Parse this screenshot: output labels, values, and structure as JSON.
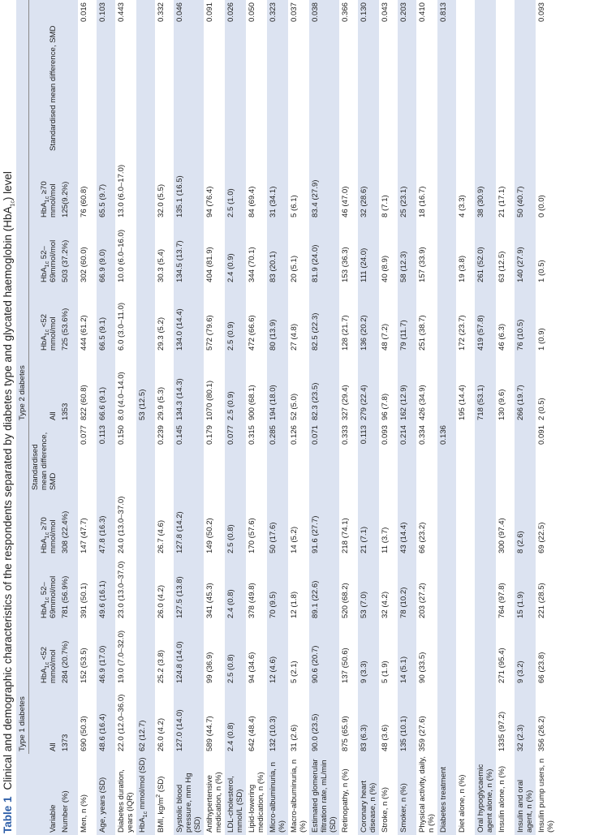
{
  "title": {
    "label": "Table 1",
    "text": [
      "Clinical and demographic characteristics of the respondents separated by diabetes type and glycated haemoglobin (HbA",
      {
        "sub": "1c"
      },
      ") level"
    ]
  },
  "table": {
    "groups": [
      "Type 1 diabetes",
      "Type 2 diabetes"
    ],
    "columns": [
      [
        "Variable"
      ],
      [
        "All"
      ],
      [
        "HbA",
        {
          "sub": "1c"
        },
        " <52 mmol/mol"
      ],
      [
        "HbA",
        {
          "sub": "1c"
        },
        " 52–69mmol/mol"
      ],
      [
        "HbA",
        {
          "sub": "1c"
        },
        " ≥70 mmol/mol"
      ],
      [
        "Standardised mean difference, SMD"
      ],
      [
        "All"
      ],
      [
        "HbA",
        {
          "sub": "1c"
        },
        " <52 mmol/mol"
      ],
      [
        "HbA",
        {
          "sub": "1c"
        },
        " 52–69mmol/mol"
      ],
      [
        "HbA",
        {
          "sub": "1c"
        },
        " ≥70 mmol/mol"
      ],
      [
        "Standardised mean difference, SMD"
      ]
    ],
    "rows": [
      {
        "label": [
          "Number (%)"
        ],
        "cells": [
          "1373",
          "284 (20.7%)",
          "781 (56.9%)",
          "308 (22.4%)",
          null,
          "1353",
          "725 (53.6%)",
          "503 (37.2%)",
          "125(9.2%)",
          null
        ]
      },
      {
        "label": [
          "Men, n (%)"
        ],
        "cells": [
          "690 (50.3)",
          "152 (53.5)",
          "391 (50.1)",
          "147 (47.7)",
          "0.077",
          "822 (60.8)",
          "444 (61.2)",
          "302 (60.0)",
          "76 (60.8)",
          "0.016"
        ]
      },
      {
        "label": [
          "Age, years (SD)"
        ],
        "cells": [
          "48.6 (16.4)",
          "46.9 (17.0)",
          "49.6 (16.1)",
          "47.8 (16.3)",
          "0.113",
          "66.6 (9.1)",
          "66.5 (9.1)",
          "66.9 (9.0)",
          "65.5 (9.7)",
          "0.103"
        ]
      },
      {
        "label": [
          "Diabetes duration, years (IQR)"
        ],
        "cells": [
          "22.0 (12.0–36.0)",
          "19.0 (7.0–32.0)",
          "23.0 (13.0–37.0)",
          "24.0 (13.0–37.0)",
          "0.150",
          "8.0 (4.0–14.0)",
          "6.0 (3.0–11.0)",
          "10.0 (6.0–16.0)",
          "13.0 (6.0–17.0)",
          "0.443"
        ]
      },
      {
        "label": [
          "HbA",
          {
            "sub": "1c"
          },
          " mmol/mol (SD)"
        ],
        "cells": [
          "62 (12.7)",
          null,
          null,
          null,
          null,
          "53 (12.5)",
          null,
          null,
          null,
          null
        ]
      },
      {
        "label": [
          "BMI, kg/m",
          {
            "sup": "2"
          },
          " (SD)"
        ],
        "cells": [
          "26.0 (4.2)",
          "25.2 (3.8)",
          "26.0 (4.2)",
          "26.7 (4.6)",
          "0.239",
          "29.9 (5.3)",
          "29.3 (5.2)",
          "30.3 (5.4)",
          "32.0 (5.5)",
          "0.332"
        ]
      },
      {
        "label": [
          "Systolic blood pressure, mm Hg (SD)"
        ],
        "cells": [
          "127.0 (14.0)",
          "124.8 (14.0)",
          "127.5 (13.8)",
          "127.8 (14.2)",
          "0.145",
          "134.3 (14.3)",
          "134.0 (14.4)",
          "134.5 (13.7)",
          "135.1 (16.5)",
          "0.046"
        ]
      },
      {
        "label": [
          "Antihypertensive medication, n (%)"
        ],
        "cells": [
          "589 (44.7)",
          "99 (36.9)",
          "341 (45.3)",
          "149 (50.2)",
          "0.179",
          "1070 (80.1)",
          "572 (79.6)",
          "404 (81.9)",
          "94 (76.4)",
          "0.091"
        ]
      },
      {
        "label": [
          "LDL-cholesterol, mmol/L (SD)"
        ],
        "cells": [
          "2.4 (0.8)",
          "2.5 (0.8)",
          "2.4 (0.8)",
          "2.5 (0.8)",
          "0.077",
          "2.5 (0.9)",
          "2.5 (0.9)",
          "2.4 (0.9)",
          "2.5 (1.0)",
          "0.026"
        ]
      },
      {
        "label": [
          "Lipid-lowering medication, n (%)"
        ],
        "cells": [
          "642 (48.4)",
          "94 (34.6)",
          "378 (49.8)",
          "170 (57.6)",
          "0.315",
          "900 (68.1)",
          "472 (66.6)",
          "344 (70.1)",
          "84 (69.4)",
          "0.050"
        ]
      },
      {
        "label": [
          "Micro-albuminuria, n (%)"
        ],
        "cells": [
          "132 (10.3)",
          "12 (4.6)",
          "70 (9.5)",
          "50 (17.6)",
          "0.285",
          "194 (18.0)",
          "80 (13.9)",
          "83 (20.1)",
          "31 (34.1)",
          "0.323"
        ]
      },
      {
        "label": [
          "Macro-albuminuria, n (%)"
        ],
        "cells": [
          "31 (2.6)",
          "5 (2.1)",
          "12 (1.8)",
          "14 (5.2)",
          "0.126",
          "52 (5.0)",
          "27 (4.8)",
          "20 (5.1)",
          "5 (6.1)",
          "0.037"
        ]
      },
      {
        "label": [
          "Estimated glomerular filtration rate, mL/min (SD)"
        ],
        "cells": [
          "90.0 (23.5)",
          "90.6 (20.7)",
          "89.1 (22.6)",
          "91.6 (27.7)",
          "0.071",
          "82.3 (23.5)",
          "82.5 (22.3)",
          "81.9 (24.0)",
          "83.4 (27.9)",
          "0.038"
        ]
      },
      {
        "label": [
          "Retinopathy, n (%)"
        ],
        "cells": [
          "875 (65.9)",
          "137 (50.6)",
          "520 (68.2)",
          "218 (74.1)",
          "0.333",
          "327 (29.4)",
          "128 (21.7)",
          "153 (36.3)",
          "46 (47.0)",
          "0.366"
        ]
      },
      {
        "label": [
          "Coronary heart disease, n (%)"
        ],
        "cells": [
          "83 (6.3)",
          "9 (3.3)",
          "53 (7.0)",
          "21 (7.1)",
          "0.113",
          "279 (22.4)",
          "136 (20.2)",
          "111 (24.0)",
          "32 (28.6)",
          "0.130"
        ]
      },
      {
        "label": [
          "Stroke, n (%)"
        ],
        "cells": [
          "48 (3.6)",
          "5 (1.9)",
          "32 (4.2)",
          "11 (3.7)",
          "0.093",
          "96 (7.8)",
          "48 (7.2)",
          "40 (8.9)",
          "8 (7.1)",
          "0.043"
        ]
      },
      {
        "label": [
          "Smoker, n (%)"
        ],
        "cells": [
          "135 (10.1)",
          "14 (5.1)",
          "78 (10.2)",
          "43 (14.4)",
          "0.214",
          "162 (12.9)",
          "79 (11.7)",
          "58 (12.3)",
          "25 (23.1)",
          "0.203"
        ]
      },
      {
        "label": [
          "Physical activity, daily, n (%)"
        ],
        "cells": [
          "359 (27.6)",
          "90 (33.5)",
          "203 (27.2)",
          "66 (23.2)",
          "0.334",
          "426 (34.9)",
          "251 (38.7)",
          "157 (33.9)",
          "18 (16.7)",
          "0.410"
        ]
      },
      {
        "label": [
          "Diabetes treatment"
        ],
        "cells": [
          null,
          null,
          null,
          null,
          "0.136",
          null,
          null,
          null,
          null,
          "0.813"
        ]
      },
      {
        "label": [
          "Diet alone, n (%)"
        ],
        "cells": [
          null,
          null,
          null,
          null,
          null,
          "195 (14.4)",
          "172 (23.7)",
          "19 (3.8)",
          "4 (3.3)",
          null
        ]
      },
      {
        "label": [
          "Oral hypoglycaemic agent alone, n (%)"
        ],
        "cells": [
          null,
          null,
          null,
          null,
          null,
          "718 (53.1)",
          "419 (57.8)",
          "261 (52.0)",
          "38 (30.9)",
          null
        ]
      },
      {
        "label": [
          "Insulin alone, n (%)"
        ],
        "cells": [
          "1335 (97.2)",
          "271 (95.4)",
          "764 (97.8)",
          "300 (97.4)",
          null,
          "130 (9.6)",
          "46 (6.3)",
          "63 (12.5)",
          "21 (17.1)",
          null
        ]
      },
      {
        "label": [
          "Insulin and oral agent, n (%)"
        ],
        "cells": [
          "32 (2.3)",
          "9 (3.2)",
          "15 (1.9)",
          "8 (2.6)",
          null,
          "266 (19.7)",
          "76 (10.5)",
          "140 (27.9)",
          "50 (40.7)",
          null
        ]
      },
      {
        "label": [
          "Insulin pump users, n (%)"
        ],
        "cells": [
          "356 (26.2)",
          "66 (23.8)",
          "221 (28.5)",
          "69 (22.5)",
          "0.091",
          "2 (0.5)",
          "1 (0.9)",
          "1 (0.5)",
          "0 (0.0)",
          "0.093"
        ]
      }
    ]
  }
}
